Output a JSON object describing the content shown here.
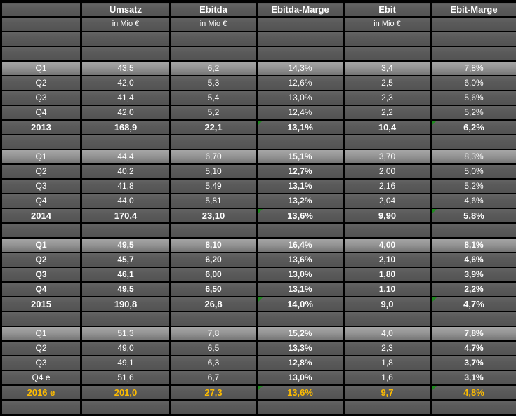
{
  "colors": {
    "background": "#000000",
    "cell_background": "#5a5a5a",
    "highlight_row_top": "#a6a6a6",
    "highlight_row_bottom": "#747474",
    "grid_border": "#000000",
    "text": "#ffffff",
    "forecast_text": "#fdbc00",
    "indicator_triangle": "#1f8b1f"
  },
  "table": {
    "columns": [
      "label",
      "umsatz",
      "ebitda",
      "ebitda_marge",
      "ebit",
      "ebit_marge"
    ],
    "rows": [
      {
        "name": "col-headers",
        "type": "cols-header",
        "cells": [
          "",
          "Umsatz",
          "Ebitda",
          "Ebitda-Marge",
          "Ebit",
          "Ebit-Marge"
        ]
      },
      {
        "name": "units",
        "type": "units",
        "cells": [
          "",
          "in Mio €",
          "in Mio €",
          "",
          "in Mio €",
          ""
        ]
      },
      {
        "name": "spacer-top-1",
        "type": "spacer",
        "cells": [
          "",
          "",
          "",
          "",
          "",
          ""
        ]
      },
      {
        "name": "spacer-top-2",
        "type": "spacer",
        "cells": [
          "",
          "",
          "",
          "",
          "",
          ""
        ]
      },
      {
        "name": "2013-q1",
        "type": "quarter-first",
        "cells": [
          "Q1",
          "43,5",
          "6,2",
          "14,3%",
          "3,4",
          "7,8%"
        ]
      },
      {
        "name": "2013-q2",
        "type": "quarter",
        "cells": [
          "Q2",
          "42,0",
          "5,3",
          "12,6%",
          "2,5",
          "6,0%"
        ]
      },
      {
        "name": "2013-q3",
        "type": "quarter",
        "cells": [
          "Q3",
          "41,4",
          "5,4",
          "13,0%",
          "2,3",
          "5,6%"
        ]
      },
      {
        "name": "2013-q4",
        "type": "quarter",
        "cells": [
          "Q4",
          "42,0",
          "5,2",
          "12,4%",
          "2,2",
          "5,2%"
        ]
      },
      {
        "name": "2013-total",
        "type": "year",
        "cells": [
          "2013",
          "168,9",
          "22,1",
          "13,1%",
          "10,4",
          "6,2%"
        ],
        "triangle_cols": [
          3,
          5
        ]
      },
      {
        "name": "spacer-after-2013",
        "type": "spacer",
        "cells": [
          "",
          "",
          "",
          "",
          "",
          ""
        ]
      },
      {
        "name": "2014-q1",
        "type": "quarter-first",
        "cells": [
          "Q1",
          "44,4",
          "6,70",
          "15,1%",
          "3,70",
          "8,3%"
        ],
        "bold_cols": [
          3
        ]
      },
      {
        "name": "2014-q2",
        "type": "quarter",
        "cells": [
          "Q2",
          "40,2",
          "5,10",
          "12,7%",
          "2,00",
          "5,0%"
        ],
        "bold_cols": [
          3
        ]
      },
      {
        "name": "2014-q3",
        "type": "quarter",
        "cells": [
          "Q3",
          "41,8",
          "5,49",
          "13,1%",
          "2,16",
          "5,2%"
        ],
        "bold_cols": [
          3
        ]
      },
      {
        "name": "2014-q4",
        "type": "quarter",
        "cells": [
          "Q4",
          "44,0",
          "5,81",
          "13,2%",
          "2,04",
          "4,6%"
        ],
        "bold_cols": [
          3
        ]
      },
      {
        "name": "2014-total",
        "type": "year",
        "cells": [
          "2014",
          "170,4",
          "23,10",
          "13,6%",
          "9,90",
          "5,8%"
        ],
        "triangle_cols": [
          3,
          5
        ]
      },
      {
        "name": "spacer-after-2014",
        "type": "spacer",
        "cells": [
          "",
          "",
          "",
          "",
          "",
          ""
        ]
      },
      {
        "name": "2015-q1",
        "type": "quarter-first",
        "bold": true,
        "cells": [
          "Q1",
          "49,5",
          "8,10",
          "16,4%",
          "4,00",
          "8,1%"
        ]
      },
      {
        "name": "2015-q2",
        "type": "quarter",
        "bold": true,
        "cells": [
          "Q2",
          "45,7",
          "6,20",
          "13,6%",
          "2,10",
          "4,6%"
        ]
      },
      {
        "name": "2015-q3",
        "type": "quarter",
        "bold": true,
        "cells": [
          "Q3",
          "46,1",
          "6,00",
          "13,0%",
          "1,80",
          "3,9%"
        ]
      },
      {
        "name": "2015-q4",
        "type": "quarter",
        "bold": true,
        "cells": [
          "Q4",
          "49,5",
          "6,50",
          "13,1%",
          "1,10",
          "2,2%"
        ]
      },
      {
        "name": "2015-total",
        "type": "year",
        "cells": [
          "2015",
          "190,8",
          "26,8",
          "14,0%",
          "9,0",
          "4,7%"
        ],
        "triangle_cols": [
          3,
          5
        ]
      },
      {
        "name": "spacer-after-2015",
        "type": "spacer",
        "cells": [
          "",
          "",
          "",
          "",
          "",
          ""
        ]
      },
      {
        "name": "2016-q1",
        "type": "quarter-first",
        "cells": [
          "Q1",
          "51,3",
          "7,8",
          "15,2%",
          "4,0",
          "7,8%"
        ],
        "bold_cols": [
          3,
          5
        ]
      },
      {
        "name": "2016-q2",
        "type": "quarter",
        "cells": [
          "Q2",
          "49,0",
          "6,5",
          "13,3%",
          "2,3",
          "4,7%"
        ],
        "bold_cols": [
          3,
          5
        ]
      },
      {
        "name": "2016-q3",
        "type": "quarter",
        "cells": [
          "Q3",
          "49,1",
          "6,3",
          "12,8%",
          "1,8",
          "3,7%"
        ],
        "bold_cols": [
          3,
          5
        ]
      },
      {
        "name": "2016-q4",
        "type": "quarter",
        "cells": [
          "Q4 e",
          "51,6",
          "6,7",
          "13,0%",
          "1,6",
          "3,1%"
        ],
        "bold_cols": [
          3,
          5
        ]
      },
      {
        "name": "2016-total",
        "type": "year-forecast",
        "cells": [
          "2016 e",
          "201,0",
          "27,3",
          "13,6%",
          "9,7",
          "4,8%"
        ],
        "triangle_cols": [
          3,
          5
        ]
      },
      {
        "name": "spacer-bottom",
        "type": "spacer",
        "cells": [
          "",
          "",
          "",
          "",
          "",
          ""
        ]
      }
    ]
  }
}
